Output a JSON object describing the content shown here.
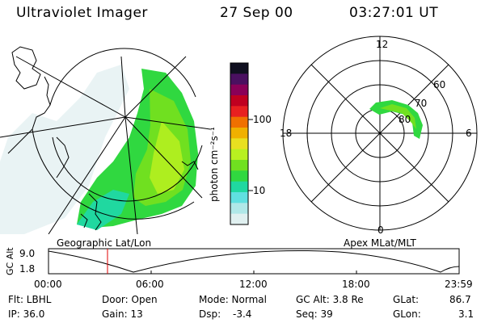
{
  "header": {
    "title": "Ultraviolet Imager",
    "date": "27 Sep 00",
    "time": "03:27:01 UT"
  },
  "geo_panel": {
    "caption": "Geographic Lat/Lon"
  },
  "colorbar": {
    "label": "photon cm⁻²s⁻¹",
    "ticks": [
      "100",
      "10"
    ],
    "colors": [
      "#101020",
      "#4a1060",
      "#8a0058",
      "#c00020",
      "#e82020",
      "#f07000",
      "#f0b000",
      "#e8e020",
      "#b8f020",
      "#70e020",
      "#30d840",
      "#20d8a0",
      "#60e0e0",
      "#b0e8e8",
      "#e0f0f0"
    ]
  },
  "polar_panel": {
    "caption": "Apex MLat/MLT",
    "mlt_labels": [
      "12",
      "6",
      "0",
      "18"
    ],
    "mlat_labels": [
      "60",
      "70",
      "80"
    ]
  },
  "timeline": {
    "ylabel": "GC Alt",
    "yticks": [
      "9.0",
      "1.8"
    ],
    "xticks": [
      "00:00",
      "06:00",
      "12:00",
      "18:00",
      "23:59"
    ],
    "marker_time_hours": 3.45
  },
  "info": {
    "flt": "Flt: LBHL",
    "ip": "IP: 36.0",
    "door": "Door: Open",
    "gain": "Gain: 13",
    "mode": "Mode: Normal",
    "dsp_label": "Dsp:",
    "dsp_value": "-3.4",
    "gc_alt": "GC Alt: 3.8 Re",
    "seq": "Seq: 39",
    "glat_label": "GLat:",
    "glat_value": "86.7",
    "glon_label": "GLon:",
    "glon_value": "3.1"
  }
}
